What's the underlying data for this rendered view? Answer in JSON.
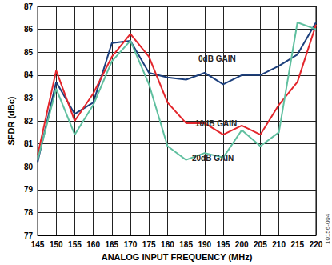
{
  "chart_data": {
    "type": "line",
    "x_label": "ANALOG INPUT FREQUENCY (MHz)",
    "y_label": "SFDR (dBc)",
    "x": [
      145,
      150,
      155,
      160,
      165,
      170,
      175,
      180,
      185,
      190,
      195,
      200,
      205,
      210,
      215,
      220
    ],
    "series": [
      {
        "name": "0dB GAIN",
        "color": "#1c3f7c",
        "values": [
          80.2,
          83.7,
          82.3,
          82.8,
          85.4,
          85.5,
          84.1,
          83.9,
          83.8,
          84.1,
          83.6,
          84.0,
          84.0,
          84.4,
          84.9,
          86.3
        ]
      },
      {
        "name": "10dB GAIN",
        "color": "#e3262c",
        "values": [
          80.5,
          84.2,
          82.0,
          83.2,
          84.8,
          85.8,
          84.8,
          82.8,
          81.9,
          81.9,
          81.4,
          81.8,
          81.4,
          82.7,
          83.7,
          86.2
        ]
      },
      {
        "name": "20dB GAIN",
        "color": "#5fbf9f",
        "values": [
          80.3,
          83.4,
          81.4,
          82.7,
          84.6,
          85.5,
          83.6,
          80.9,
          80.3,
          80.6,
          80.4,
          81.6,
          80.9,
          81.5,
          86.3,
          86.0
        ]
      }
    ],
    "xlim": [
      145,
      220
    ],
    "xticks": [
      145,
      150,
      155,
      160,
      165,
      170,
      175,
      180,
      185,
      190,
      195,
      200,
      205,
      210,
      215,
      220
    ],
    "ylim": [
      77,
      87
    ],
    "yticks": [
      77,
      78,
      79,
      80,
      81,
      82,
      83,
      84,
      85,
      86,
      87
    ],
    "grid": true,
    "annotations": [
      "10156-004"
    ]
  }
}
